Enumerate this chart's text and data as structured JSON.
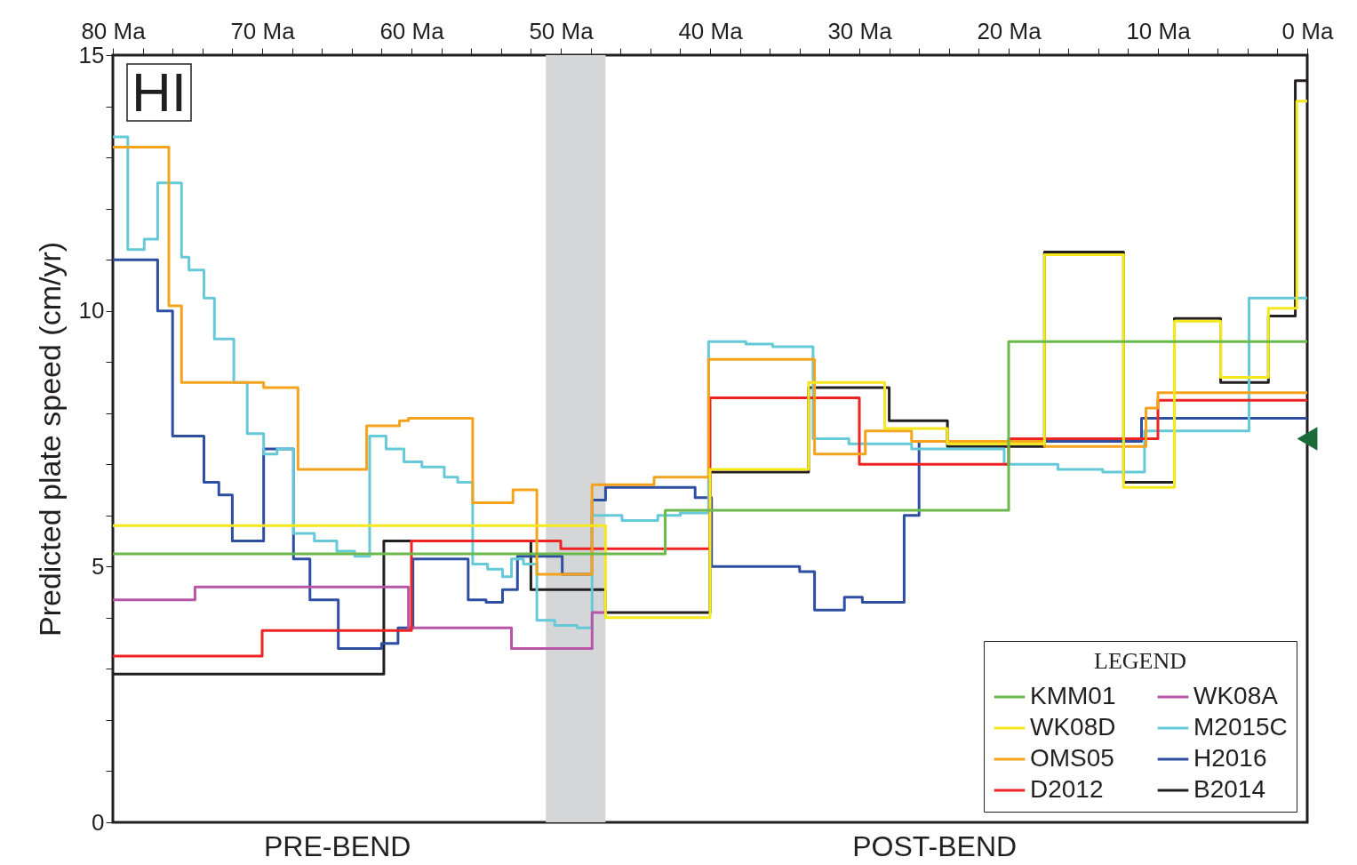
{
  "chart_data": {
    "type": "step",
    "ylabel": "Predicted plate speed (cm/yr)",
    "legend_title": "LEGEND",
    "legend": "bottom right",
    "grid": false,
    "xlim": [
      80,
      0
    ],
    "ylim": [
      0,
      15
    ],
    "xticks": [
      {
        "value": 80,
        "label": "80 Ma"
      },
      {
        "value": 78,
        "label": null
      },
      {
        "value": 76,
        "label": null
      },
      {
        "value": 74,
        "label": null
      },
      {
        "value": 72,
        "label": null
      },
      {
        "value": 70,
        "label": "70 Ma"
      },
      {
        "value": 68,
        "label": null
      },
      {
        "value": 66,
        "label": null
      },
      {
        "value": 64,
        "label": null
      },
      {
        "value": 62,
        "label": null
      },
      {
        "value": 60,
        "label": "60 Ma"
      },
      {
        "value": 58,
        "label": null
      },
      {
        "value": 56,
        "label": null
      },
      {
        "value": 54,
        "label": null
      },
      {
        "value": 52,
        "label": null
      },
      {
        "value": 50,
        "label": "50 Ma"
      },
      {
        "value": 48,
        "label": null
      },
      {
        "value": 46,
        "label": null
      },
      {
        "value": 44,
        "label": null
      },
      {
        "value": 42,
        "label": null
      },
      {
        "value": 40,
        "label": "40 Ma"
      },
      {
        "value": 38,
        "label": null
      },
      {
        "value": 36,
        "label": null
      },
      {
        "value": 34,
        "label": null
      },
      {
        "value": 32,
        "label": null
      },
      {
        "value": 30,
        "label": "30 Ma"
      },
      {
        "value": 28,
        "label": null
      },
      {
        "value": 26,
        "label": null
      },
      {
        "value": 24,
        "label": null
      },
      {
        "value": 22,
        "label": null
      },
      {
        "value": 20,
        "label": "20 Ma"
      },
      {
        "value": 18,
        "label": null
      },
      {
        "value": 16,
        "label": null
      },
      {
        "value": 14,
        "label": null
      },
      {
        "value": 12,
        "label": null
      },
      {
        "value": 10,
        "label": "10 Ma"
      },
      {
        "value": 8,
        "label": null
      },
      {
        "value": 6,
        "label": null
      },
      {
        "value": 4,
        "label": null
      },
      {
        "value": 2,
        "label": null
      },
      {
        "value": 0,
        "label": "0 Ma"
      }
    ],
    "yticks": [
      0,
      {
        "value": 1,
        "label": null
      },
      {
        "value": 2,
        "label": null
      },
      {
        "value": 3,
        "label": null
      },
      {
        "value": 4,
        "label": null
      },
      5,
      {
        "value": 6,
        "label": null
      },
      {
        "value": 7,
        "label": null
      },
      {
        "value": 8,
        "label": null
      },
      {
        "value": 9,
        "label": null
      },
      10,
      {
        "value": 11,
        "label": null
      },
      {
        "value": 12,
        "label": null
      },
      {
        "value": 13,
        "label": null
      },
      {
        "value": 14,
        "label": null
      },
      15
    ],
    "bands": [
      {
        "axis": "x",
        "from": 51,
        "to": 47,
        "color": "#d5d6d8"
      }
    ],
    "annotations": [
      "HI",
      "PRE-BEND",
      "POST-BEND"
    ],
    "series": [
      {
        "name": "KMM01",
        "color": "#6ab94a",
        "x": [
          80,
          43,
          20,
          0
        ],
        "values": [
          5.25,
          6.1,
          9.4,
          9.4
        ]
      },
      {
        "name": "WK08D",
        "color": "#f4e81c",
        "x": [
          80,
          47,
          40,
          33.4,
          28.3,
          24.1,
          17.6,
          12.3,
          8.9,
          5.8,
          2.6,
          0.7,
          0
        ],
        "values": [
          5.8,
          4.0,
          6.9,
          8.6,
          7.7,
          7.4,
          11.1,
          6.55,
          9.8,
          8.7,
          10.05,
          14.1,
          14.1
        ]
      },
      {
        "name": "OMS05",
        "color": "#f5a31c",
        "x": [
          80,
          76.25,
          75.4,
          69.9,
          67.6,
          63,
          60.8,
          60.2,
          55.9,
          53.2,
          51.6,
          47.9,
          43.75,
          40.1,
          33,
          29.6,
          26.5,
          17.6,
          10.8,
          10,
          0
        ],
        "values": [
          13.2,
          10.1,
          8.6,
          8.5,
          6.9,
          7.75,
          7.85,
          7.9,
          6.25,
          6.5,
          4.85,
          6.6,
          6.75,
          9.05,
          7.2,
          7.65,
          7.45,
          7.35,
          8.1,
          8.4,
          8.4
        ]
      },
      {
        "name": "D2012",
        "color": "#ee2424",
        "x": [
          80,
          70,
          60,
          50,
          40,
          30,
          20,
          10,
          0
        ],
        "values": [
          3.25,
          3.75,
          5.5,
          5.35,
          8.3,
          7.0,
          7.5,
          8.25,
          8.25
        ]
      },
      {
        "name": "WK08A",
        "color": "#b855a6",
        "x": [
          80,
          74.5,
          60.2,
          53.3,
          47.9,
          47
        ],
        "values": [
          4.35,
          4.6,
          3.8,
          3.4,
          4.1,
          4.1
        ]
      },
      {
        "name": "M2015C",
        "color": "#66c9d8",
        "x": [
          80,
          79,
          77.9,
          77,
          75.4,
          74.9,
          73.9,
          73.2,
          71.9,
          71,
          69.9,
          69,
          67.9,
          66.5,
          65,
          63.8,
          62.8,
          61.7,
          60.5,
          59.3,
          57.8,
          56.9,
          55.9,
          54.9,
          53.9,
          53.3,
          52.5,
          51.6,
          50.4,
          48.9,
          47.9,
          45.9,
          43.5,
          42,
          40.1,
          37.6,
          35.8,
          33.1,
          30.7,
          26.5,
          20.3,
          16.7,
          13.7,
          10.9,
          3.9,
          0
        ],
        "values": [
          13.4,
          11.2,
          11.4,
          12.5,
          11.05,
          10.8,
          10.25,
          9.45,
          8.6,
          7.6,
          7.2,
          7.3,
          5.65,
          5.5,
          5.3,
          5.2,
          7.55,
          7.3,
          7.05,
          6.95,
          6.75,
          6.65,
          5.05,
          4.95,
          4.8,
          5.15,
          5.05,
          3.95,
          3.85,
          3.8,
          6.0,
          5.9,
          6.0,
          6.05,
          9.4,
          9.35,
          9.3,
          7.5,
          7.4,
          7.3,
          7.0,
          6.9,
          6.85,
          7.65,
          10.25,
          10.25
        ]
      },
      {
        "name": "H2016",
        "color": "#2e4fa1",
        "x": [
          80,
          77,
          76,
          73.9,
          72.9,
          72,
          69.9,
          67.9,
          66.8,
          64.9,
          62,
          60.9,
          59.9,
          56.2,
          55,
          53.9,
          52.9,
          49.9,
          47.9,
          47,
          41,
          39.9,
          34,
          33,
          31,
          29.8,
          27,
          26,
          11.1,
          0
        ],
        "values": [
          11.0,
          10.0,
          7.55,
          6.65,
          6.4,
          5.5,
          7.3,
          5.15,
          4.35,
          3.4,
          3.5,
          3.8,
          5.15,
          4.35,
          4.3,
          4.55,
          5.2,
          4.85,
          6.3,
          6.55,
          6.35,
          5.0,
          4.9,
          4.15,
          4.4,
          4.3,
          6.0,
          7.45,
          7.9,
          7.9
        ]
      },
      {
        "name": "B2014",
        "color": "#231f20",
        "x": [
          80,
          61.85,
          52,
          47,
          40,
          33.4,
          28,
          24.1,
          17.6,
          12.3,
          8.9,
          5.8,
          2.6,
          0.8,
          0
        ],
        "values": [
          2.9,
          5.5,
          4.55,
          4.1,
          6.85,
          8.5,
          7.85,
          7.35,
          11.15,
          6.65,
          9.85,
          8.6,
          9.9,
          14.5,
          14.5
        ]
      },
      {
        "type": "scatter",
        "marker": "triangle",
        "color": "#1b6b38",
        "x": [
          0
        ],
        "values": [
          7.5
        ]
      }
    ]
  }
}
